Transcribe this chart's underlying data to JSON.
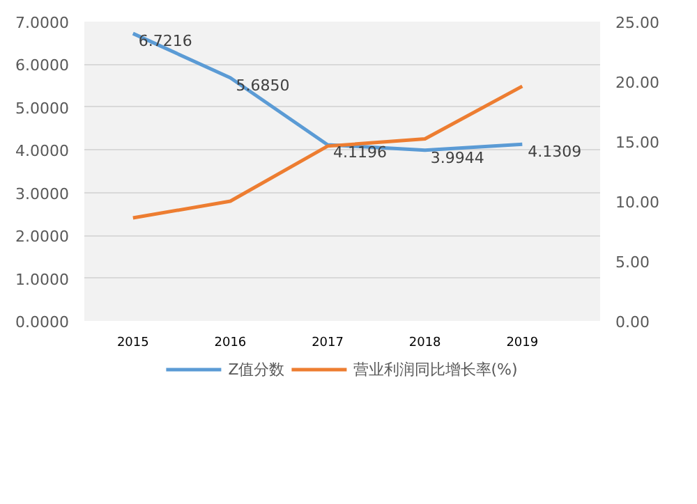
{
  "chart_data": {
    "type": "line",
    "categories": [
      "2015",
      "2016",
      "2017",
      "2018",
      "2019"
    ],
    "series": [
      {
        "name": "Z值分数",
        "color": "#5b9bd5",
        "values": [
          6.7216,
          5.685,
          4.1196,
          3.9944,
          4.1309
        ],
        "value_labels": [
          "6.7216",
          "5.6850",
          "4.1196",
          "3.9944",
          "4.1309"
        ]
      },
      {
        "name": "营业利润同比增长率(%)",
        "color": "#ed7d31",
        "axis": "y2",
        "values": [
          8.6,
          10.0,
          14.6,
          15.2,
          19.6
        ]
      }
    ],
    "ylim": [
      0,
      7
    ],
    "yticks": [
      {
        "value": 0,
        "label": "0.0000"
      },
      {
        "value": 1,
        "label": "1.0000"
      },
      {
        "value": 2,
        "label": "2.0000"
      },
      {
        "value": 3,
        "label": "3.0000"
      },
      {
        "value": 4,
        "label": "4.0000"
      },
      {
        "value": 5,
        "label": "5.0000"
      },
      {
        "value": 6,
        "label": "6.0000"
      },
      {
        "value": 7,
        "label": "7.0000"
      }
    ],
    "y2lim": [
      0,
      25
    ],
    "y2ticks": [
      {
        "value": 0,
        "label": "0.00"
      },
      {
        "value": 5,
        "label": "5.00"
      },
      {
        "value": 10,
        "label": "10.00"
      },
      {
        "value": 15,
        "label": "15.00"
      },
      {
        "value": 20,
        "label": "20.00"
      },
      {
        "value": 25,
        "label": "25.00"
      }
    ],
    "grid": "y",
    "legend": "bottom",
    "line_style": "solid",
    "marker": "none"
  }
}
